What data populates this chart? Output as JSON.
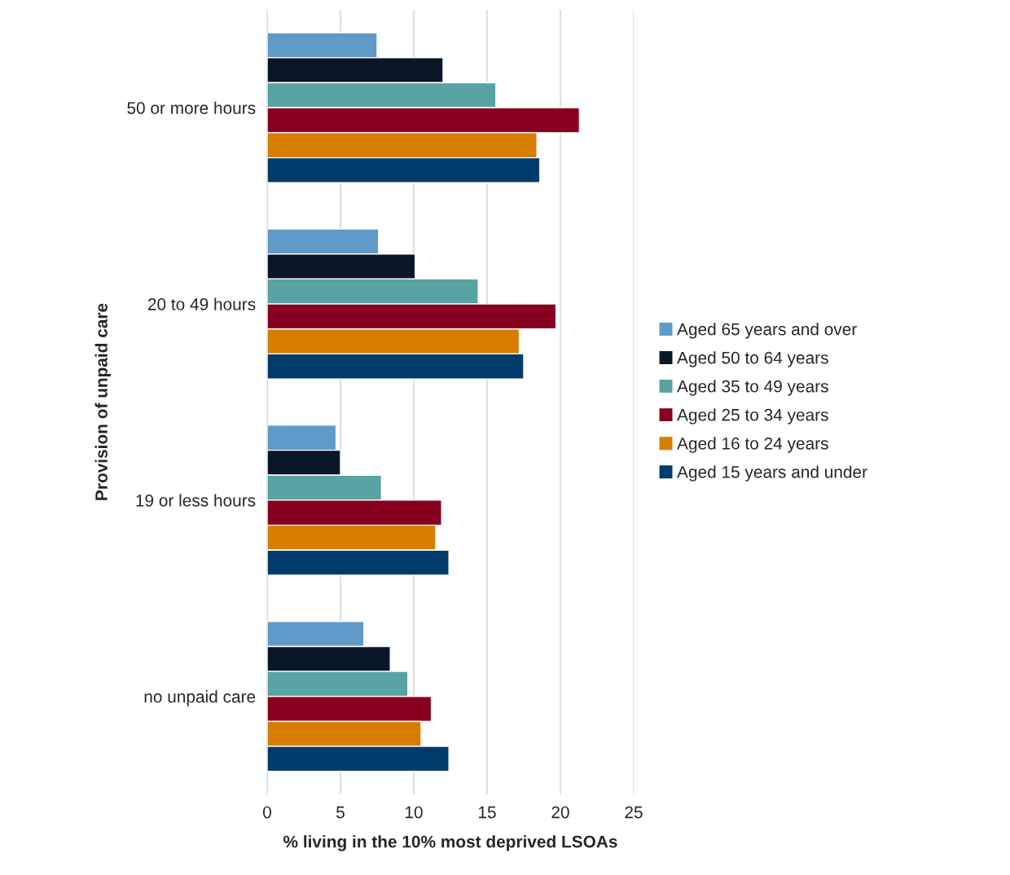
{
  "chart_data": {
    "type": "bar",
    "orientation": "horizontal",
    "categories": [
      "50 or more hours",
      "20 to 49 hours",
      "19 or less hours",
      "no unpaid care"
    ],
    "xlabel": "% living in the 10% most deprived LSOAs",
    "ylabel": "Provision of unpaid care",
    "xlim": [
      0,
      25
    ],
    "xticks": [
      0,
      5,
      10,
      15,
      20,
      25
    ],
    "grid": "x",
    "legend": "right",
    "series": [
      {
        "name": "Aged 65 years and over",
        "color": "#5f9ac8",
        "values": [
          7.5,
          7.6,
          4.7,
          6.6
        ]
      },
      {
        "name": "Aged 50 to 64 years",
        "color": "#0b1728",
        "values": [
          12.0,
          10.1,
          5.0,
          8.4
        ]
      },
      {
        "name": "Aged 35 to 49 years",
        "color": "#58a3a3",
        "values": [
          15.6,
          14.4,
          7.8,
          9.6
        ]
      },
      {
        "name": "Aged 25 to 34 years",
        "color": "#870020",
        "values": [
          21.3,
          19.7,
          11.9,
          11.2
        ]
      },
      {
        "name": "Aged 16 to 24 years",
        "color": "#d67d00",
        "values": [
          18.4,
          17.2,
          11.5,
          10.5
        ]
      },
      {
        "name": "Aged 15 years and under",
        "color": "#003b6b",
        "values": [
          18.6,
          17.5,
          12.4,
          12.4
        ]
      }
    ]
  }
}
